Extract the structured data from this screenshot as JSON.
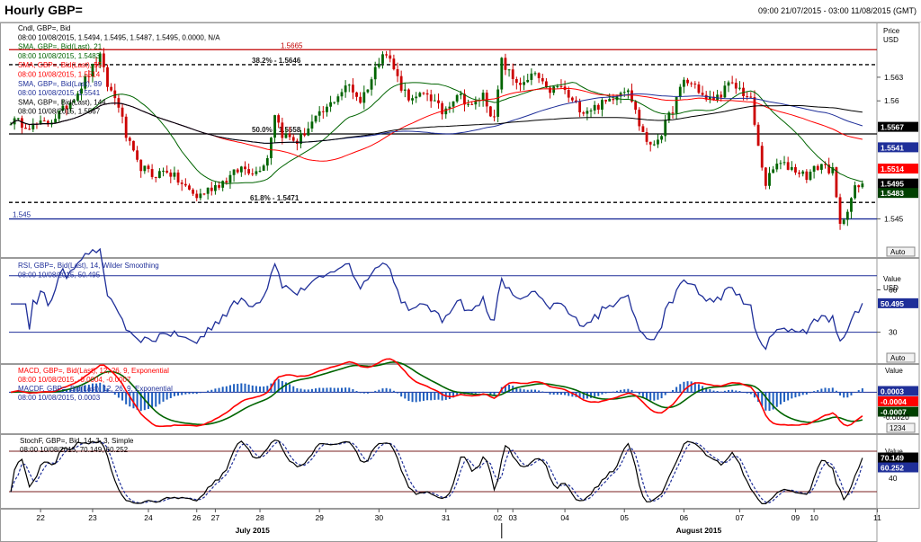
{
  "window": {
    "title": "Hourly GBP=",
    "range": "09:00 21/07/2015 - 03:00 11/08/2015 (GMT)"
  },
  "panels": {
    "price": {
      "legend": [
        {
          "text": "Cndl, GBP=, Bid",
          "color": "#000000"
        },
        {
          "text": "08:00 10/08/2015, 1.5494, 1.5495, 1.5487, 1.5495, 0.0000, N/A",
          "color": "#000000"
        },
        {
          "text": "SMA, GBP=, Bid(Last), 21",
          "color": "#006400"
        },
        {
          "text": "08:00 10/08/2015, 1.5483",
          "color": "#006400"
        },
        {
          "text": "SMA, GBP=, Bid(Last), 55",
          "color": "#ff0000"
        },
        {
          "text": "08:00 10/08/2015, 1.5514",
          "color": "#ff0000"
        },
        {
          "text": "SMA, GBP=, Bid(Last), 89",
          "color": "#1f2f99"
        },
        {
          "text": "08:00 10/08/2015, 1.5541",
          "color": "#1f2f99"
        },
        {
          "text": "SMA, GBP=, Bid(Last), 144",
          "color": "#000000"
        },
        {
          "text": "08:00 10/08/2015, 1.5567",
          "color": "#000000"
        }
      ],
      "axis_title": "Price",
      "axis_unit": "USD",
      "auto_label": "Auto"
    },
    "rsi": {
      "legend": [
        {
          "text": "RSI, GBP=, Bid(Last), 14, Wilder Smoothing",
          "color": "#1f2f99"
        },
        {
          "text": "08:00 10/08/2015, 50.495",
          "color": "#1f2f99"
        }
      ],
      "axis_title": "Value",
      "axis_unit": "USD",
      "auto_label": "Auto"
    },
    "macd": {
      "legend": [
        {
          "text": "MACD, GBP=, Bid(Last), 12, 26, 9, Exponential",
          "color": "#ff0000"
        },
        {
          "text": "08:00 10/08/2015, -0.0004, -0.0007",
          "color": "#ff0000"
        },
        {
          "text": "MACDF, GBP=, Bid(Last), 12, 26, 9, Exponential",
          "color": "#1f2f99"
        },
        {
          "text": "08:00 10/08/2015, 0.0003",
          "color": "#1f2f99"
        }
      ],
      "axis_title": "Value",
      "auto_label": "1234"
    },
    "stoch": {
      "legend": [
        {
          "text": "StochF, GBP=, Bid, 14, 3, 3, Simple",
          "color": "#000000"
        },
        {
          "text": "08:00 10/08/2015, 70.149, 60.252",
          "color": "#000000"
        }
      ],
      "axis_title": "Value"
    }
  },
  "chart_data": [
    {
      "panel": "price",
      "type": "candlestick",
      "ylim": [
        1.5405,
        1.5695
      ],
      "x_count": 230,
      "yticks": [
        1.545,
        1.56,
        1.563
      ],
      "xticks": [
        {
          "i": 8,
          "label": "22"
        },
        {
          "i": 22,
          "label": "23"
        },
        {
          "i": 37,
          "label": "24"
        },
        {
          "i": 50,
          "label": "26"
        },
        {
          "i": 55,
          "label": "27"
        },
        {
          "i": 67,
          "label": "28"
        },
        {
          "i": 83,
          "label": "29"
        },
        {
          "i": 99,
          "label": "30"
        },
        {
          "i": 117,
          "label": "31"
        },
        {
          "i": 131,
          "label": "02"
        },
        {
          "i": 135,
          "label": "03"
        },
        {
          "i": 149,
          "label": "04"
        },
        {
          "i": 165,
          "label": "05"
        },
        {
          "i": 181,
          "label": "06"
        },
        {
          "i": 196,
          "label": "07"
        },
        {
          "i": 211,
          "label": "09"
        },
        {
          "i": 216,
          "label": "10"
        },
        {
          "i": 233,
          "label": "11"
        }
      ],
      "month_labels": [
        {
          "i": 65,
          "label": "July 2015"
        },
        {
          "i": 185,
          "label": "August 2015"
        }
      ],
      "anchors": [
        [
          0,
          1.5575
        ],
        [
          6,
          1.5568
        ],
        [
          10,
          1.5572
        ],
        [
          14,
          1.5588
        ],
        [
          18,
          1.5612
        ],
        [
          22,
          1.5642
        ],
        [
          24,
          1.5655
        ],
        [
          26,
          1.562
        ],
        [
          29,
          1.5595
        ],
        [
          31,
          1.5555
        ],
        [
          34,
          1.552
        ],
        [
          38,
          1.5505
        ],
        [
          42,
          1.5512
        ],
        [
          46,
          1.5494
        ],
        [
          50,
          1.5478
        ],
        [
          54,
          1.549
        ],
        [
          58,
          1.55
        ],
        [
          62,
          1.5515
        ],
        [
          66,
          1.551
        ],
        [
          69,
          1.5528
        ],
        [
          71,
          1.5585
        ],
        [
          73,
          1.5558
        ],
        [
          77,
          1.5548
        ],
        [
          81,
          1.5572
        ],
        [
          85,
          1.559
        ],
        [
          88,
          1.5608
        ],
        [
          91,
          1.562
        ],
        [
          94,
          1.56
        ],
        [
          97,
          1.5628
        ],
        [
          100,
          1.5665
        ],
        [
          102,
          1.5652
        ],
        [
          105,
          1.5618
        ],
        [
          108,
          1.56
        ],
        [
          112,
          1.561
        ],
        [
          116,
          1.5585
        ],
        [
          120,
          1.561
        ],
        [
          124,
          1.5592
        ],
        [
          127,
          1.5608
        ],
        [
          130,
          1.5575
        ],
        [
          132,
          1.565
        ],
        [
          135,
          1.5628
        ],
        [
          138,
          1.562
        ],
        [
          141,
          1.5635
        ],
        [
          144,
          1.5612
        ],
        [
          148,
          1.5618
        ],
        [
          151,
          1.5598
        ],
        [
          154,
          1.5588
        ],
        [
          157,
          1.5592
        ],
        [
          160,
          1.5598
        ],
        [
          163,
          1.561
        ],
        [
          166,
          1.5618
        ],
        [
          169,
          1.557
        ],
        [
          172,
          1.554
        ],
        [
          175,
          1.556
        ],
        [
          178,
          1.559
        ],
        [
          181,
          1.5625
        ],
        [
          184,
          1.562
        ],
        [
          187,
          1.56
        ],
        [
          190,
          1.5605
        ],
        [
          193,
          1.562
        ],
        [
          196,
          1.5615
        ],
        [
          199,
          1.56
        ],
        [
          201,
          1.554
        ],
        [
          203,
          1.5495
        ],
        [
          206,
          1.552
        ],
        [
          210,
          1.5515
        ],
        [
          214,
          1.5505
        ],
        [
          218,
          1.552
        ],
        [
          221,
          1.551
        ],
        [
          223,
          1.544
        ],
        [
          225,
          1.5465
        ],
        [
          227,
          1.5488
        ],
        [
          230,
          1.5495
        ],
        [
          233,
          1.5492
        ],
        [
          236,
          1.5492
        ],
        [
          239,
          1.5495
        ]
      ],
      "levels": [
        {
          "value": 1.5665,
          "label": "1.5665",
          "style": "solid",
          "color": "#c00000"
        },
        {
          "value": 1.5646,
          "label": "38.2% - 1.5646",
          "style": "dashed",
          "color": "#000000"
        },
        {
          "value": 1.5558,
          "label": "50.0% - 1.5558",
          "style": "solid",
          "color": "#000000"
        },
        {
          "value": 1.5471,
          "label": "61.8% - 1.5471",
          "style": "dashed",
          "color": "#000000"
        },
        {
          "value": 1.545,
          "label": "1.545",
          "style": "solid",
          "color": "#1f2f99"
        }
      ],
      "value_tags": [
        {
          "value": 1.5567,
          "label": "1.5567",
          "bg": "#000000",
          "fg": "#ffffff"
        },
        {
          "value": 1.5541,
          "label": "1.5541",
          "bg": "#1f2f99",
          "fg": "#ffffff"
        },
        {
          "value": 1.5514,
          "label": "1.5514",
          "bg": "#ff0000",
          "fg": "#ffffff"
        },
        {
          "value": 1.5495,
          "label": "1.5495",
          "bg": "#000000",
          "fg": "#ffffff"
        },
        {
          "value": 1.5483,
          "label": "1.5483",
          "bg": "#004000",
          "fg": "#ffffff"
        }
      ],
      "series": [
        {
          "period": 21,
          "color": "#006400"
        },
        {
          "period": 55,
          "color": "#ff0000"
        },
        {
          "period": 89,
          "color": "#1f2f99"
        },
        {
          "period": 144,
          "color": "#000000"
        }
      ]
    },
    {
      "panel": "rsi",
      "type": "line",
      "ylim": [
        10,
        80
      ],
      "yticks": [
        30,
        60
      ],
      "hlines": [
        30,
        70
      ],
      "color": "#1f2f99",
      "value_tags": [
        {
          "value": 50.495,
          "label": "50.495",
          "bg": "#1f2f99",
          "fg": "#ffffff"
        }
      ]
    },
    {
      "panel": "macd",
      "type": "line+histogram",
      "ylim": [
        -0.0028,
        0.0018
      ],
      "yticks": [
        -0.002
      ],
      "series": [
        {
          "name": "MACD",
          "color": "#ff0000"
        },
        {
          "name": "Signal",
          "color": "#006400"
        },
        {
          "name": "MACDF",
          "color": "#1f2f99",
          "kind": "histogram"
        }
      ],
      "value_tags": [
        {
          "value": 0.0003,
          "label": "0.0003",
          "bg": "#1f2f99",
          "fg": "#ffffff"
        },
        {
          "value": -0.0004,
          "label": "-0.0004",
          "bg": "#ff0000",
          "fg": "#ffffff"
        },
        {
          "value": -0.0007,
          "label": "-0.0007",
          "bg": "#004000",
          "fg": "#ffffff"
        }
      ],
      "axis_text": "-0.0020"
    },
    {
      "panel": "stoch",
      "type": "line",
      "ylim": [
        0,
        100
      ],
      "yticks": [
        40
      ],
      "hlines": [
        20,
        80
      ],
      "series": [
        {
          "name": "%K",
          "color": "#000000",
          "dash": false
        },
        {
          "name": "%D",
          "color": "#1f2f99",
          "dash": true
        }
      ],
      "value_tags": [
        {
          "value": 70.149,
          "label": "70.149",
          "bg": "#000000",
          "fg": "#ffffff"
        },
        {
          "value": 60.252,
          "label": "60.252",
          "bg": "#1f2f99",
          "fg": "#ffffff"
        }
      ]
    }
  ]
}
